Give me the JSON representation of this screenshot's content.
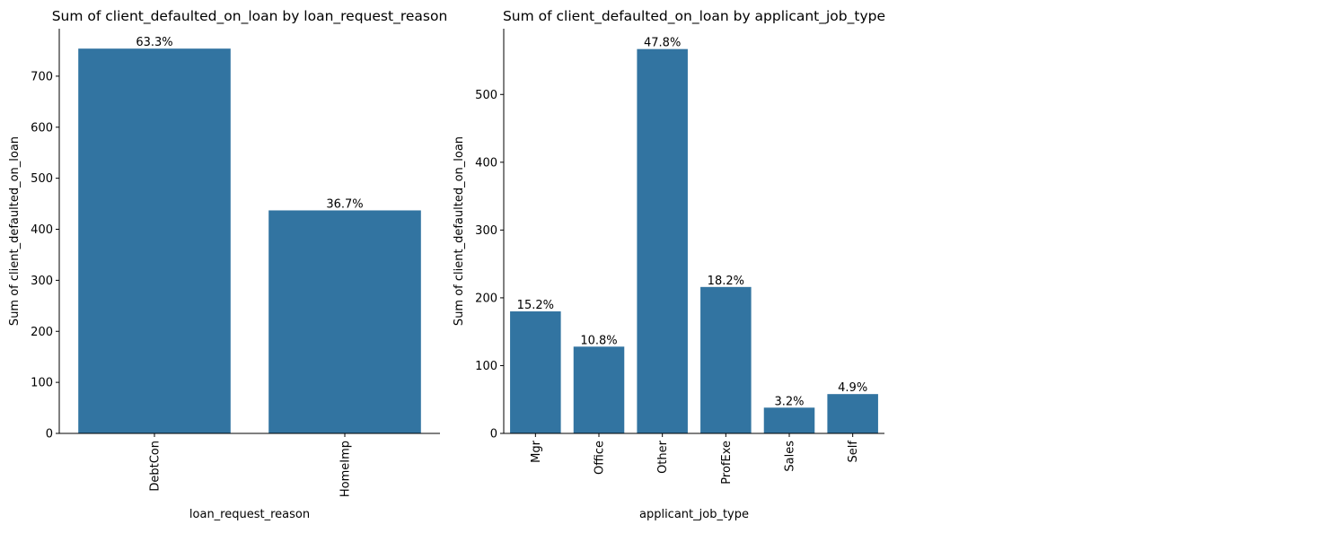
{
  "chart_data": [
    {
      "type": "bar",
      "title": "Sum of client_defaulted_on_loan by loan_request_reason",
      "x_label": "loan_request_reason",
      "y_label": "Sum of client_defaulted_on_loan",
      "categories": [
        "DebtCon",
        "HomeImp"
      ],
      "values": [
        754,
        437
      ],
      "value_labels": [
        "63.3%",
        "36.7%"
      ],
      "color": "#3274a1",
      "ylim": [
        0,
        793
      ],
      "yticks": [
        0,
        100,
        200,
        300,
        400,
        500,
        600,
        700
      ]
    },
    {
      "type": "bar",
      "title": "Sum of client_defaulted_on_loan by applicant_job_type",
      "x_label": "applicant_job_type",
      "y_label": "Sum of client_defaulted_on_loan",
      "categories": [
        "Mgr",
        "Office",
        "Other",
        "ProfExe",
        "Sales",
        "Self"
      ],
      "values": [
        180,
        128,
        567,
        216,
        38,
        58
      ],
      "value_labels": [
        "15.2%",
        "10.8%",
        "47.8%",
        "18.2%",
        "3.2%",
        "4.9%"
      ],
      "color": "#3274a1",
      "ylim": [
        0,
        597
      ],
      "yticks": [
        0,
        100,
        200,
        300,
        400,
        500
      ]
    }
  ]
}
